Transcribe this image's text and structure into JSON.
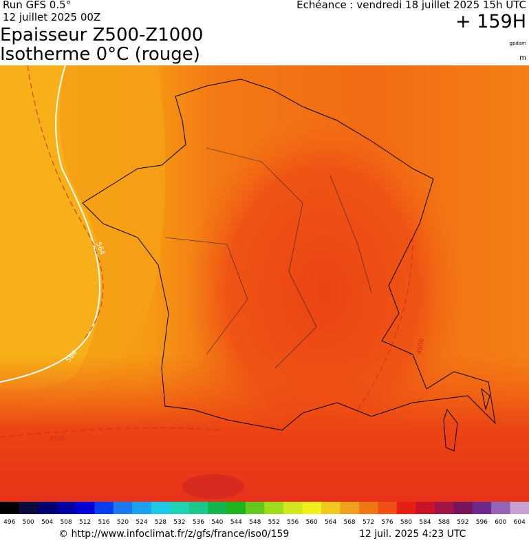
{
  "header": {
    "run": "Run GFS 0.5°",
    "run_date": "12 juillet 2025 00Z",
    "valid": "Echéance : vendredi 18 juillet 2025 15h UTC",
    "lead": "+ 159H",
    "title": "Epaisseur Z500-Z1000",
    "subtitle": "Isotherme 0°C (rouge)",
    "unit_thickness": "gpdam",
    "unit_iso": "m"
  },
  "contour_labels": [
    "564",
    "564",
    "4500",
    "4500"
  ],
  "colorbar": {
    "labels": [
      "496",
      "500",
      "504",
      "508",
      "512",
      "516",
      "520",
      "524",
      "528",
      "532",
      "536",
      "540",
      "544",
      "548",
      "552",
      "556",
      "560",
      "564",
      "568",
      "572",
      "576",
      "580",
      "584",
      "588",
      "592",
      "596",
      "600",
      "604"
    ],
    "colors": [
      "#000000",
      "#0a0a3c",
      "#00006e",
      "#0000a0",
      "#0000d2",
      "#0a3cf0",
      "#1e78f0",
      "#1ea0f0",
      "#1ec8e6",
      "#1ed2b4",
      "#1ec88c",
      "#14b450",
      "#1eb41e",
      "#64c81e",
      "#a0dc1e",
      "#d2e61e",
      "#f0f01e",
      "#f0c81e",
      "#f0a01e",
      "#f07814",
      "#f05014",
      "#e61e14",
      "#c81428",
      "#a01446",
      "#78145a",
      "#6e288c",
      "#9664b4",
      "#c8a0d2"
    ]
  },
  "footer": {
    "url": "© http://www.infoclimat.fr/z/gfs/france/iso0/159",
    "generated": "12 juil. 2025  4:23 UTC"
  }
}
